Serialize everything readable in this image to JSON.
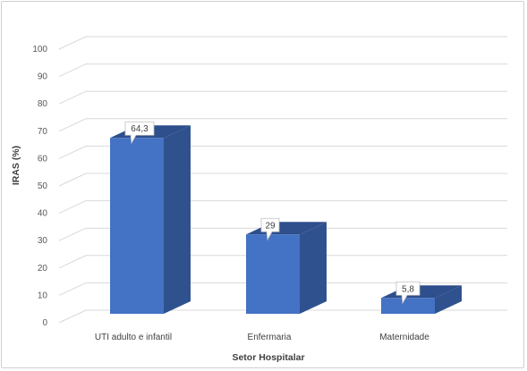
{
  "chart_data": {
    "type": "bar",
    "categories": [
      "UTI adulto e infantil",
      "Enfermaria",
      "Maternidade"
    ],
    "values": [
      64.3,
      29,
      5.8
    ],
    "data_labels": [
      "64,3",
      "29",
      "5,8"
    ],
    "xlabel": "Setor Hospitalar",
    "ylabel": "IRAS (%)",
    "ylim": [
      0,
      100
    ],
    "yticks": [
      "0",
      "10",
      "20",
      "30",
      "40",
      "50",
      "60",
      "70",
      "80",
      "90",
      "100"
    ],
    "grid": true,
    "style": "3d-column",
    "colors": {
      "front": "#4472c4",
      "side": "#2f528f",
      "top": "#2e4f8c",
      "grid": "#d9d9d9"
    }
  }
}
